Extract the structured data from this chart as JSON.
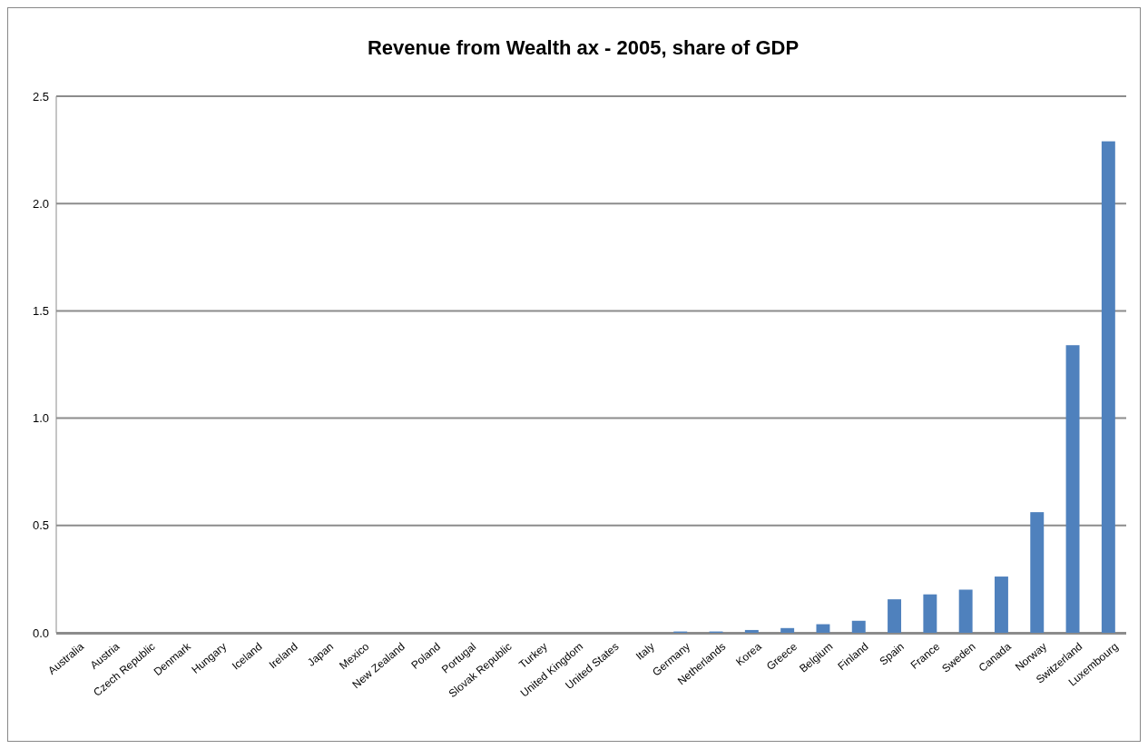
{
  "chart_data": {
    "type": "bar",
    "title": "Revenue from Wealth ax - 2005, share of GDP",
    "categories": [
      "Australia",
      "Austria",
      "Czech Republic",
      "Denmark",
      "Hungary",
      "Iceland",
      "Ireland",
      "Japan",
      "Mexico",
      "New Zealand",
      "Poland",
      "Portugal",
      "Slovak Republic",
      "Turkey",
      "United Kingdom",
      "United States",
      "Italy",
      "Germany",
      "Netherlands",
      "Korea",
      "Greece",
      "Belgium",
      "Finland",
      "Spain",
      "France",
      "Sweden",
      "Canada",
      "Norway",
      "Switzerland",
      "Luxembourg"
    ],
    "values": [
      0,
      0,
      0,
      0,
      0,
      0,
      0,
      0,
      0,
      0,
      0,
      0,
      0,
      0,
      0,
      0,
      0,
      0.006,
      0.006,
      0.013,
      0.022,
      0.04,
      0.056,
      0.156,
      0.179,
      0.201,
      0.262,
      0.562,
      1.34,
      2.29
    ],
    "color": "#4f81bd",
    "ylim": [
      0,
      2.5
    ],
    "yticks": [
      {
        "value": 0,
        "label": "0.0"
      },
      {
        "value": 0.5,
        "label": "0.5"
      },
      {
        "value": 1,
        "label": "1.0"
      },
      {
        "value": 1.5,
        "label": "1.5"
      },
      {
        "value": 2,
        "label": "2.0"
      },
      {
        "value": 2.5,
        "label": "2.5"
      }
    ],
    "grid": "y"
  }
}
